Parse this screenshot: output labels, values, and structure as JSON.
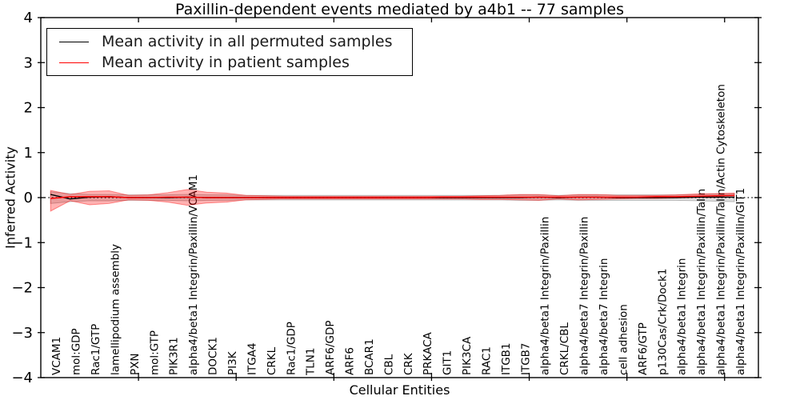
{
  "title": "Paxillin-dependent events mediated by a4b1 -- 77 samples",
  "legend": {
    "entries": [
      {
        "label": "Mean activity in all permuted samples",
        "color": "#000000"
      },
      {
        "label": "Mean activity in patient samples",
        "color": "#ff0000"
      }
    ]
  },
  "chart_data": {
    "type": "line",
    "title": "Paxillin-dependent events mediated by a4b1 -- 77 samples",
    "xlabel": "Cellular Entities",
    "ylabel": "Inferred Activity",
    "ylim": [
      -4,
      4
    ],
    "yticks": [
      -4,
      -3,
      -2,
      -1,
      0,
      1,
      2,
      3,
      4
    ],
    "xlim": [
      0,
      36.73
    ],
    "x_major_tick_values": [
      5,
      10,
      15,
      20,
      25,
      30,
      35
    ],
    "grid": false,
    "legend_position": "upper left",
    "zero_line": {
      "y": 0,
      "style": "dotted",
      "color": "#000000"
    },
    "categories": [
      "VCAM1",
      "mol:GDP",
      "Rac1/GTP",
      "lamellipodium assembly",
      "PXN",
      "mol:GTP",
      "PIK3R1",
      "alpha4/beta1 Integrin/Paxillin/VCAM1",
      "DOCK1",
      "PI3K",
      "ITGA4",
      "CRKL",
      "Rac1/GDP",
      "TLN1",
      "ARF6/GDP",
      "ARF6",
      "BCAR1",
      "CBL",
      "CRK",
      "PRKACA",
      "GIT1",
      "PIK3CA",
      "RAC1",
      "ITGB1",
      "ITGB7",
      "alpha4/beta1 Integrin/Paxillin",
      "CRKL/CBL",
      "alpha4/beta7 Integrin/Paxillin",
      "alpha4/beta7 Integrin",
      "cell adhesion",
      "ARF6/GTP",
      "p130Cas/Crk/Dock1",
      "alpha4/beta1 Integrin",
      "alpha4/beta1 Integrin/Paxillin/Talin",
      "alpha4/beta1 Integrin/Paxillin/Talin/Actin Cytoskeleton",
      "alpha4/beta1 Integrin/Paxillin/GIT1"
    ],
    "series": [
      {
        "name": "Mean activity in all permuted samples",
        "color": "#000000",
        "values": [
          0.07,
          -0.03,
          0.01,
          0.02,
          0.0,
          0.0,
          0.0,
          0.01,
          0.0,
          0.0,
          0.0,
          0.0,
          0.0,
          0.0,
          0.0,
          0.0,
          0.0,
          0.0,
          0.0,
          0.0,
          0.0,
          0.0,
          0.0,
          0.0,
          0.0,
          0.01,
          0.0,
          0.01,
          0.01,
          0.0,
          0.0,
          0.0,
          0.0,
          0.01,
          0.01,
          0.01
        ]
      },
      {
        "name": "Mean activity in patient samples",
        "color": "#ff0000",
        "values": [
          -0.02,
          0.02,
          0.02,
          0.02,
          0.0,
          0.0,
          0.01,
          0.01,
          0.0,
          0.0,
          0.0,
          0.0,
          0.0,
          0.0,
          0.0,
          0.0,
          0.0,
          0.0,
          0.0,
          0.0,
          0.01,
          0.01,
          0.01,
          0.01,
          0.01,
          0.01,
          0.01,
          0.01,
          0.01,
          0.01,
          0.01,
          0.02,
          0.02,
          0.03,
          0.04,
          0.05
        ]
      }
    ],
    "bands": [
      {
        "name": "Permuted samples activity range",
        "color": "#000000",
        "opacity": 0.12,
        "upper": [
          0.13,
          0.09,
          0.07,
          0.07,
          0.06,
          0.06,
          0.06,
          0.07,
          0.06,
          0.06,
          0.05,
          0.05,
          0.05,
          0.05,
          0.05,
          0.05,
          0.05,
          0.05,
          0.05,
          0.05,
          0.05,
          0.05,
          0.05,
          0.05,
          0.06,
          0.06,
          0.05,
          0.06,
          0.06,
          0.06,
          0.06,
          0.06,
          0.06,
          0.07,
          0.08,
          0.09
        ],
        "lower": [
          -0.13,
          -0.09,
          -0.07,
          -0.07,
          -0.06,
          -0.06,
          -0.06,
          -0.07,
          -0.06,
          -0.06,
          -0.05,
          -0.05,
          -0.05,
          -0.05,
          -0.05,
          -0.05,
          -0.05,
          -0.05,
          -0.05,
          -0.05,
          -0.05,
          -0.05,
          -0.05,
          -0.05,
          -0.06,
          -0.06,
          -0.05,
          -0.06,
          -0.06,
          -0.06,
          -0.06,
          -0.06,
          -0.06,
          -0.07,
          -0.08,
          -0.09
        ]
      },
      {
        "name": "Patient samples activity range",
        "color": "#ff0000",
        "opacity": 0.3,
        "upper": [
          0.16,
          0.07,
          0.14,
          0.15,
          0.05,
          0.06,
          0.11,
          0.18,
          0.12,
          0.1,
          0.05,
          0.04,
          0.03,
          0.03,
          0.03,
          0.03,
          0.03,
          0.03,
          0.03,
          0.03,
          0.03,
          0.03,
          0.04,
          0.05,
          0.07,
          0.07,
          0.04,
          0.07,
          0.07,
          0.05,
          0.05,
          0.05,
          0.06,
          0.08,
          0.09,
          0.1
        ],
        "lower": [
          -0.3,
          -0.07,
          -0.16,
          -0.13,
          -0.05,
          -0.06,
          -0.1,
          -0.17,
          -0.12,
          -0.1,
          -0.05,
          -0.04,
          -0.03,
          -0.03,
          -0.03,
          -0.03,
          -0.03,
          -0.03,
          -0.03,
          -0.03,
          -0.03,
          -0.03,
          -0.04,
          -0.04,
          -0.05,
          -0.06,
          -0.03,
          -0.05,
          -0.04,
          -0.03,
          -0.02,
          -0.02,
          -0.01,
          0.0,
          0.0,
          0.01
        ]
      }
    ]
  }
}
